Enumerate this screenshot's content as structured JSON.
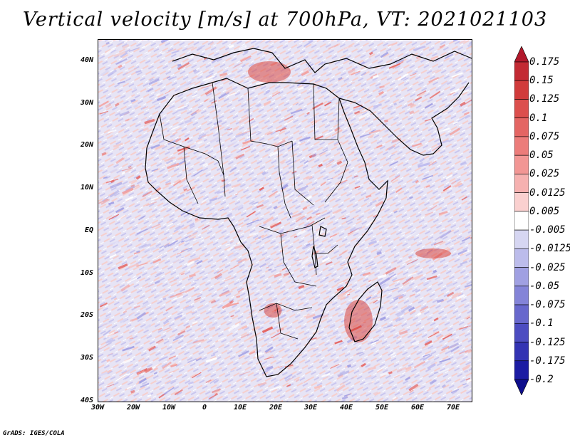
{
  "title": "Vertical velocity [m/s] at 700hPa, VT: 2021021103",
  "credit": "GrADS: IGES/COLA",
  "map": {
    "region": "Africa",
    "lat_labels": [
      {
        "value": 40,
        "label": "40N"
      },
      {
        "value": 30,
        "label": "30N"
      },
      {
        "value": 20,
        "label": "20N"
      },
      {
        "value": 10,
        "label": "10N"
      },
      {
        "value": 0,
        "label": "EQ"
      },
      {
        "value": -10,
        "label": "10S"
      },
      {
        "value": -20,
        "label": "20S"
      },
      {
        "value": -30,
        "label": "30S"
      },
      {
        "value": -40,
        "label": "40S"
      }
    ],
    "lon_labels": [
      {
        "value": -30,
        "label": "30W"
      },
      {
        "value": -20,
        "label": "20W"
      },
      {
        "value": -10,
        "label": "10W"
      },
      {
        "value": 0,
        "label": "0"
      },
      {
        "value": 10,
        "label": "10E"
      },
      {
        "value": 20,
        "label": "20E"
      },
      {
        "value": 30,
        "label": "30E"
      },
      {
        "value": 40,
        "label": "40E"
      },
      {
        "value": 50,
        "label": "50E"
      },
      {
        "value": 60,
        "label": "60E"
      },
      {
        "value": 70,
        "label": "70E"
      }
    ]
  },
  "colorbar": {
    "labels": [
      "0.175",
      "0.15",
      "0.125",
      "0.1",
      "0.075",
      "0.05",
      "0.025",
      "0.0125",
      "0.005",
      "-0.005",
      "-0.0125",
      "-0.025",
      "-0.05",
      "-0.075",
      "-0.1",
      "-0.125",
      "-0.175",
      "-0.2"
    ],
    "colors": [
      "#b2182b",
      "#c32a33",
      "#d13b3b",
      "#dc4f4d",
      "#e46563",
      "#ec7c7a",
      "#f29694",
      "#f6b1b0",
      "#fad0cf",
      "#ffffff",
      "#d6d6f2",
      "#bcbceb",
      "#a0a0e2",
      "#8484d8",
      "#6868cd",
      "#4c4cc1",
      "#3333b3",
      "#1c1ca3",
      "#0e0e8c"
    ]
  }
}
